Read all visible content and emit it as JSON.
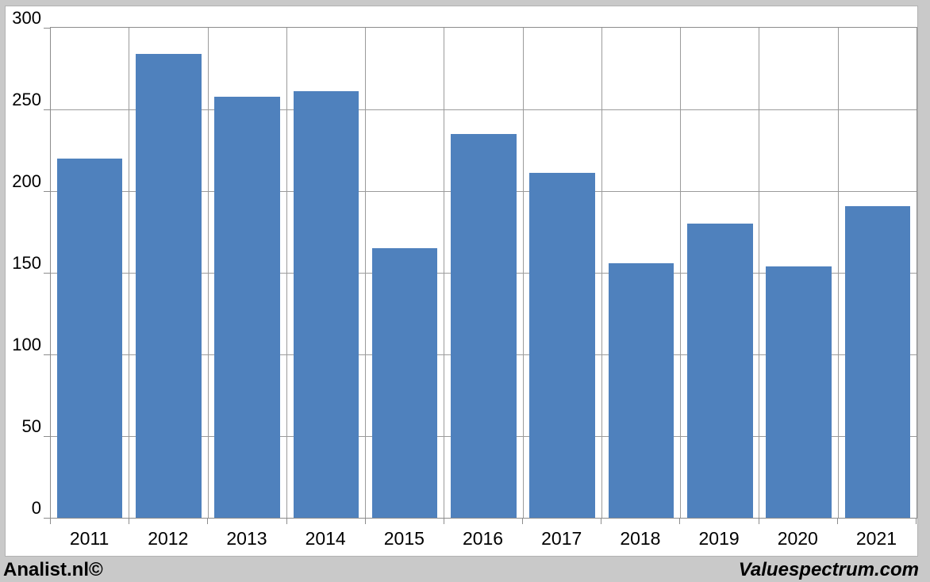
{
  "chart_data": {
    "type": "bar",
    "title": "",
    "xlabel": "",
    "ylabel": "",
    "categories": [
      "2011",
      "2012",
      "2013",
      "2014",
      "2015",
      "2016",
      "2017",
      "2018",
      "2019",
      "2020",
      "2021"
    ],
    "values": [
      220,
      284,
      258,
      261,
      165,
      235,
      211,
      156,
      180,
      154,
      191
    ],
    "ylim": [
      0,
      300
    ],
    "yticks": [
      0,
      50,
      100,
      150,
      200,
      250,
      300
    ],
    "grid": true,
    "legend_position": "none",
    "bar_color": "#4f81bd"
  },
  "branding": {
    "bottom_left": "Analist.nl©",
    "bottom_right": "Valuespectrum.com"
  },
  "colors": {
    "bar": "#4f81bd",
    "gridline": "#9b9b9b",
    "plot_border": "#8c8c8c",
    "frame_background": "#c9c9c9",
    "canvas_background": "#ffffff",
    "text": "#000000"
  }
}
